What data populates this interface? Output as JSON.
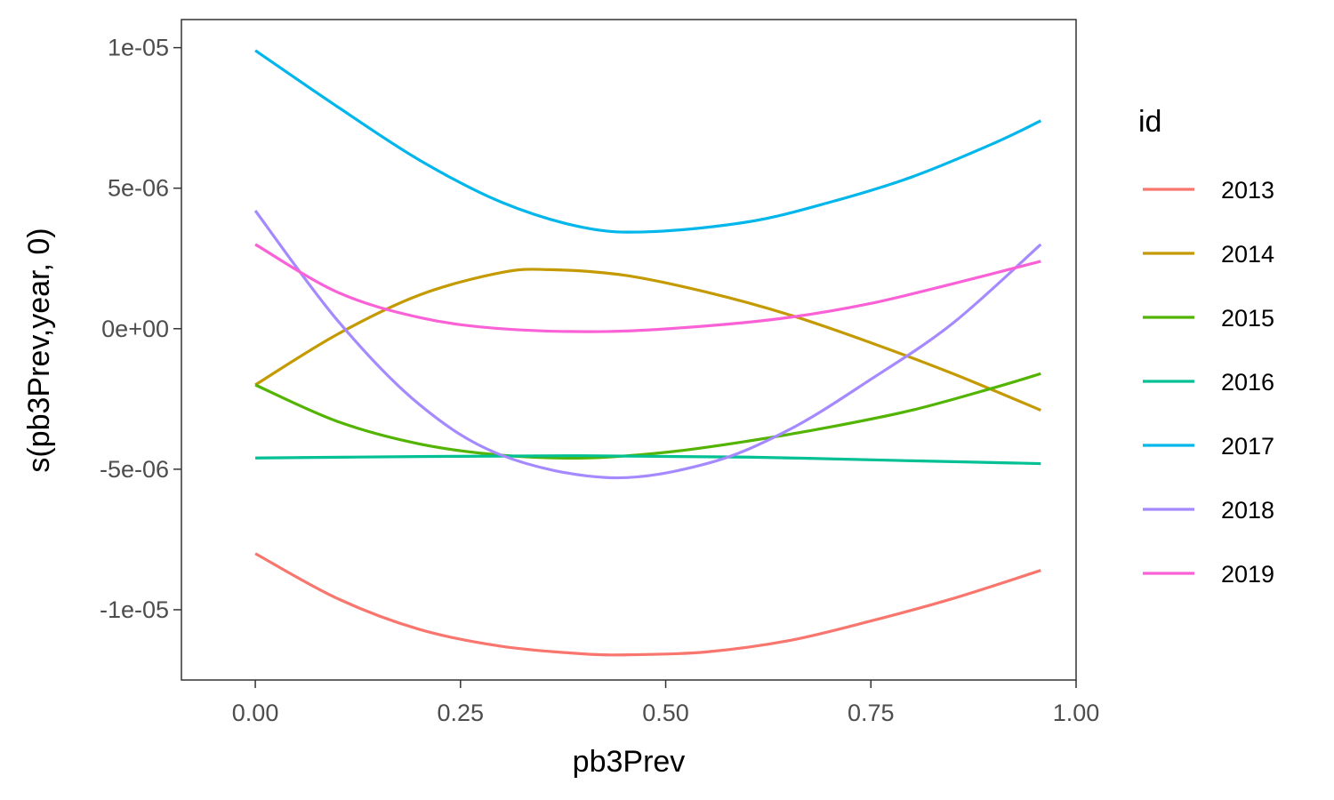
{
  "chart_data": {
    "type": "line",
    "xlabel": "pb3Prev",
    "ylabel": "s(pb3Prev,year, 0)",
    "xlim": [
      -0.09,
      1.0
    ],
    "ylim": [
      -1.25e-05,
      1.1e-05
    ],
    "x_ticks": [
      0.0,
      0.25,
      0.5,
      0.75,
      1.0
    ],
    "x_tick_labels": [
      "0.00",
      "0.25",
      "0.50",
      "0.75",
      "1.00"
    ],
    "y_ticks": [
      1e-05,
      5e-06,
      0,
      -5e-06,
      -1e-05
    ],
    "y_tick_labels": [
      "1e-05",
      "5e-06",
      "0e+00",
      "-5e-06",
      "-1e-05"
    ],
    "grid": false,
    "legend": {
      "title": "id",
      "position": "right"
    },
    "series": [
      {
        "name": "2013",
        "color": "#F8766D",
        "points": [
          [
            0.0,
            -8e-06
          ],
          [
            0.1,
            -9.6e-06
          ],
          [
            0.2,
            -1.07e-05
          ],
          [
            0.3,
            -1.13e-05
          ],
          [
            0.4,
            -1.157e-05
          ],
          [
            0.46,
            -1.16e-05
          ],
          [
            0.55,
            -1.15e-05
          ],
          [
            0.65,
            -1.11e-05
          ],
          [
            0.75,
            -1.04e-05
          ],
          [
            0.85,
            -9.6e-06
          ],
          [
            0.957,
            -8.6e-06
          ]
        ]
      },
      {
        "name": "2014",
        "color": "#C49A00",
        "points": [
          [
            0.0,
            -2e-06
          ],
          [
            0.1,
            -2e-07
          ],
          [
            0.2,
            1.2e-06
          ],
          [
            0.3,
            2e-06
          ],
          [
            0.36,
            2.1e-06
          ],
          [
            0.45,
            1.9e-06
          ],
          [
            0.55,
            1.3e-06
          ],
          [
            0.65,
            5e-07
          ],
          [
            0.75,
            -5e-07
          ],
          [
            0.85,
            -1.6e-06
          ],
          [
            0.957,
            -2.9e-06
          ]
        ]
      },
      {
        "name": "2015",
        "color": "#53B400",
        "points": [
          [
            0.0,
            -2e-06
          ],
          [
            0.1,
            -3.3e-06
          ],
          [
            0.2,
            -4.1e-06
          ],
          [
            0.3,
            -4.5e-06
          ],
          [
            0.4,
            -4.6e-06
          ],
          [
            0.5,
            -4.4e-06
          ],
          [
            0.6,
            -4e-06
          ],
          [
            0.7,
            -3.5e-06
          ],
          [
            0.8,
            -2.9e-06
          ],
          [
            0.9,
            -2.1e-06
          ],
          [
            0.957,
            -1.6e-06
          ]
        ]
      },
      {
        "name": "2016",
        "color": "#00C094",
        "points": [
          [
            0.0,
            -4.6e-06
          ],
          [
            0.2,
            -4.55e-06
          ],
          [
            0.4,
            -4.52e-06
          ],
          [
            0.6,
            -4.57e-06
          ],
          [
            0.8,
            -4.7e-06
          ],
          [
            0.957,
            -4.8e-06
          ]
        ]
      },
      {
        "name": "2017",
        "color": "#00B6EB",
        "points": [
          [
            0.0,
            9.9e-06
          ],
          [
            0.1,
            7.9e-06
          ],
          [
            0.2,
            6e-06
          ],
          [
            0.3,
            4.5e-06
          ],
          [
            0.4,
            3.6e-06
          ],
          [
            0.48,
            3.45e-06
          ],
          [
            0.6,
            3.8e-06
          ],
          [
            0.7,
            4.5e-06
          ],
          [
            0.8,
            5.4e-06
          ],
          [
            0.9,
            6.6e-06
          ],
          [
            0.957,
            7.4e-06
          ]
        ]
      },
      {
        "name": "2018",
        "color": "#A58AFF",
        "points": [
          [
            0.0,
            4.2e-06
          ],
          [
            0.1,
            3e-07
          ],
          [
            0.2,
            -2.7e-06
          ],
          [
            0.3,
            -4.5e-06
          ],
          [
            0.43,
            -5.3e-06
          ],
          [
            0.55,
            -4.8e-06
          ],
          [
            0.65,
            -3.6e-06
          ],
          [
            0.75,
            -1.8e-06
          ],
          [
            0.85,
            2e-07
          ],
          [
            0.957,
            3e-06
          ]
        ]
      },
      {
        "name": "2019",
        "color": "#FB61D7",
        "points": [
          [
            0.0,
            3e-06
          ],
          [
            0.1,
            1.3e-06
          ],
          [
            0.2,
            4e-07
          ],
          [
            0.3,
            0.0
          ],
          [
            0.43,
            -1e-07
          ],
          [
            0.55,
            1e-07
          ],
          [
            0.65,
            4e-07
          ],
          [
            0.75,
            9e-07
          ],
          [
            0.85,
            1.6e-06
          ],
          [
            0.957,
            2.4e-06
          ]
        ]
      }
    ]
  }
}
